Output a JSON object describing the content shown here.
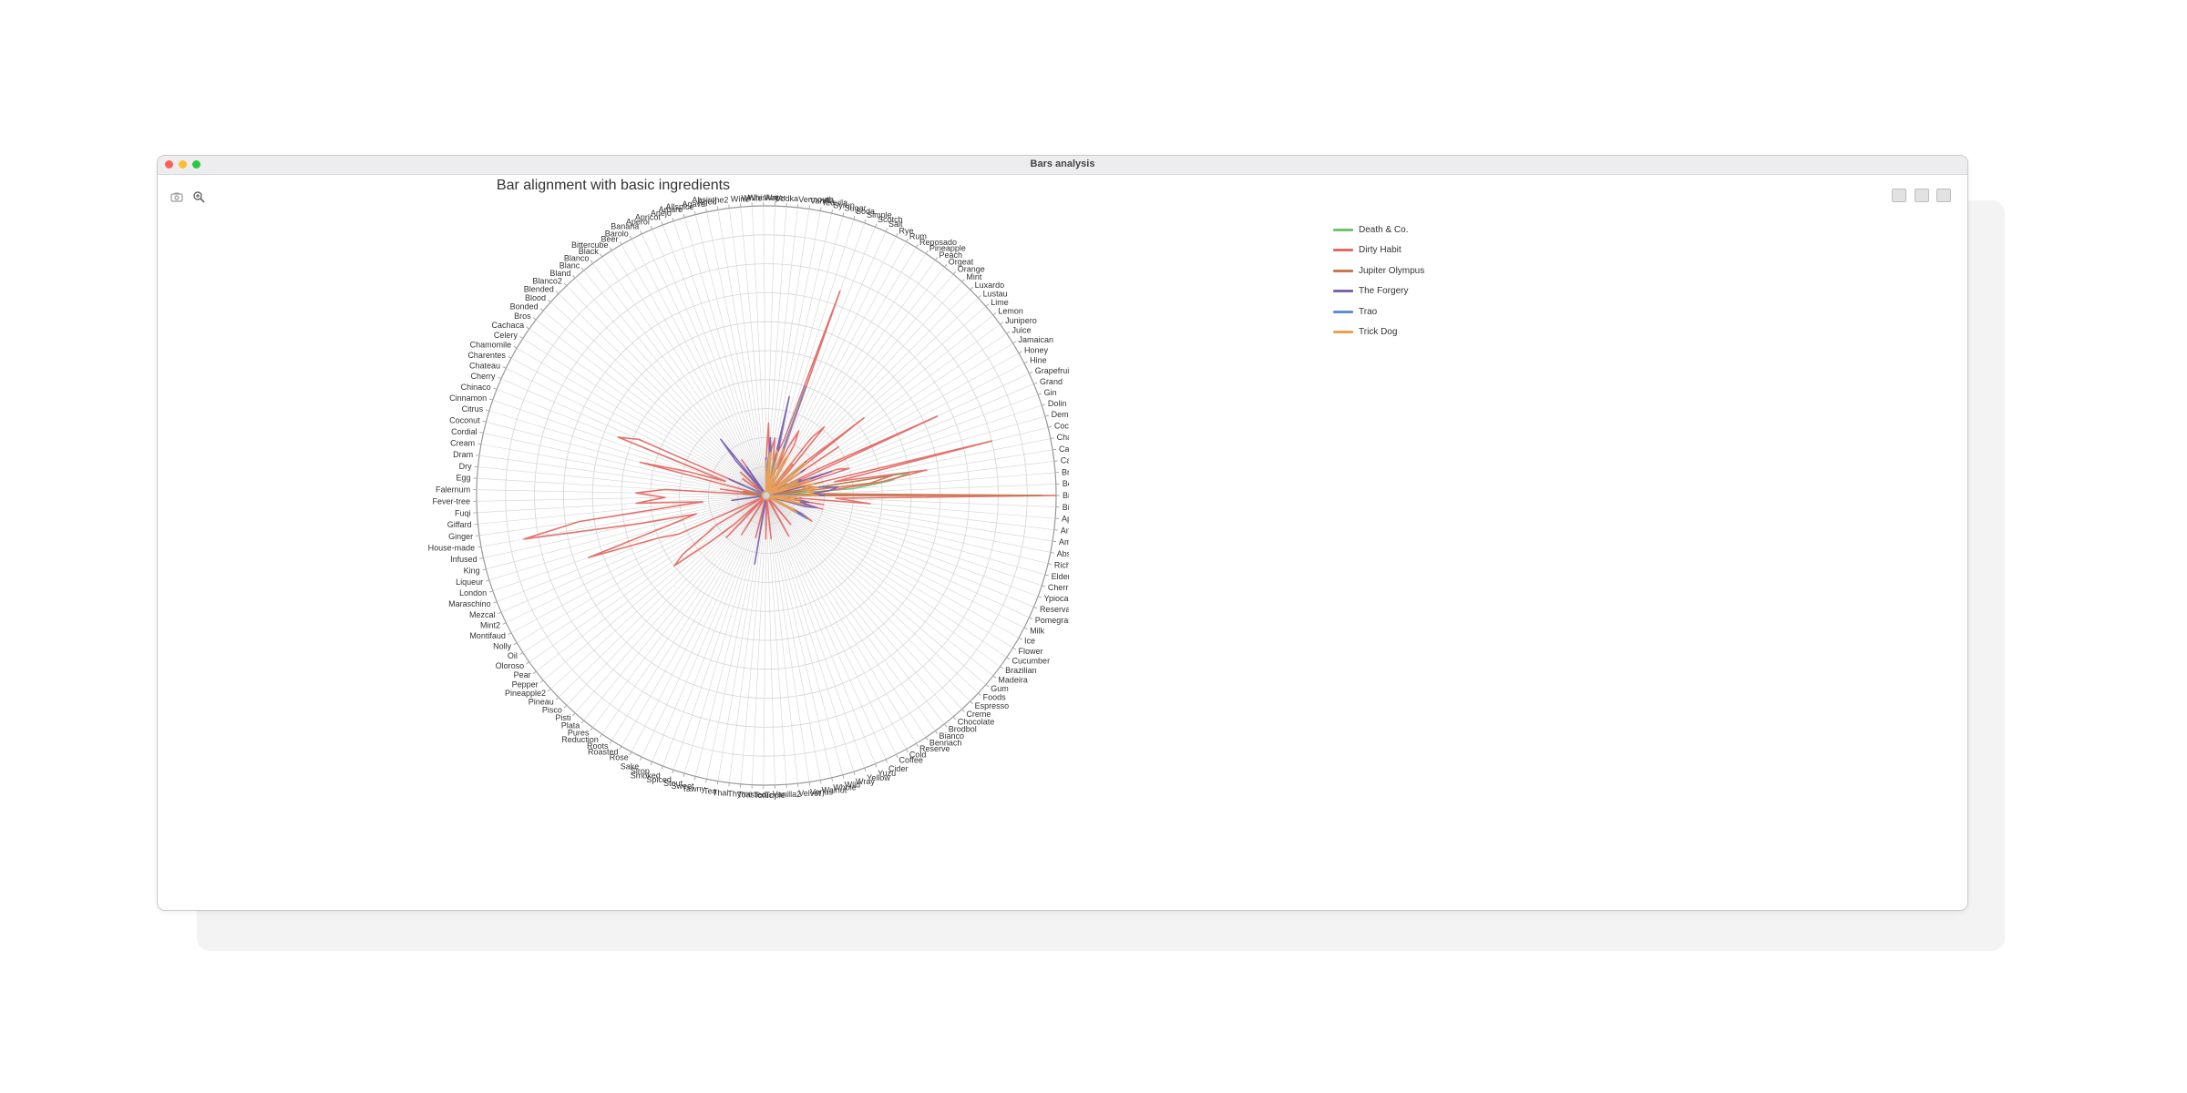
{
  "window": {
    "title": "Bars analysis"
  },
  "toolbar": {
    "left_icons": [
      "camera-icon",
      "zoom-icon"
    ],
    "right_icons": [
      "table-icon",
      "expand-icon",
      "menu-icon"
    ]
  },
  "colors": {
    "grid": "#d4d4d4",
    "axis": "#9a9a9a",
    "text": "#333333"
  },
  "chart_data": {
    "type": "radar",
    "title": "Bar alignment with basic ingredients",
    "legend_position": "right",
    "grid": true,
    "rmax": 10,
    "angle_start": "right",
    "direction": "counterclockwise",
    "categories": [
      "Bitters",
      "Bourbon",
      "Brandy",
      "Cacao",
      "Calvados",
      "Chartreuse",
      "Cocchi",
      "Demerara",
      "Dolin",
      "Gin",
      "Grand",
      "Grapefruit",
      "Hine",
      "Honey",
      "Jamaican",
      "Juice",
      "Junipero",
      "Lemon",
      "Lime",
      "Lustau",
      "Luxardo",
      "Mint",
      "Orange",
      "Orgeat",
      "Peach",
      "Pineapple",
      "Reposado",
      "Rum",
      "Rye",
      "Salt",
      "Scotch",
      "Simple",
      "Soda",
      "Sugar",
      "Syrup",
      "Tequila",
      "Vanilla",
      "Vermouth",
      "Vodka",
      "Water",
      "Whiskey",
      "White",
      "Wine",
      "Absinthe2",
      "Aged",
      "Agave",
      "Allspice",
      "Amaro",
      "Anejo",
      "Apricot",
      "Aperol",
      "Banana",
      "Barolo",
      "Beer",
      "Bittercube",
      "Black",
      "Blanco",
      "Blanc",
      "Bland",
      "Blanco2",
      "Blended",
      "Blood",
      "Bonded",
      "Bros",
      "Cachaca",
      "Celery",
      "Chamomile",
      "Charentes",
      "Chateau",
      "Cherry",
      "Chinaco",
      "Cinnamon",
      "Citrus",
      "Coconut",
      "Cordial",
      "Cream",
      "Dram",
      "Dry",
      "Egg",
      "Falernum",
      "Fever-tree",
      "Fuqi",
      "Giffard",
      "Ginger",
      "House-made",
      "Infused",
      "King",
      "Liqueur",
      "London",
      "Maraschino",
      "Mezcal",
      "Mint2",
      "Montifaud",
      "Nolly",
      "Oil",
      "Oloroso",
      "Pear",
      "Pepper",
      "Pineapple2",
      "Pineau",
      "Pisco",
      "Pisti",
      "Plata",
      "Pures",
      "Reduction",
      "Roots",
      "Roasted",
      "Rose",
      "Sake",
      "Sirop",
      "Smoked",
      "Spiced",
      "Stout",
      "Sweet",
      "Tawny",
      "Tea",
      "Thai",
      "Thyme",
      "Toasted",
      "Tonic",
      "Triple",
      "Vanilla2",
      "Velvet",
      "Verjus",
      "Walnut",
      "Whole",
      "Wild",
      "Wray",
      "Yellow",
      "Yuzu",
      "Cider",
      "Coffee",
      "Cold",
      "Reserve",
      "Benriach",
      "Bianco",
      "Brodbol",
      "Chocolate",
      "Creme",
      "Espresso",
      "Foods",
      "Gum",
      "Madeira",
      "Brazilian",
      "Cucumber",
      "Flower",
      "Ice",
      "Milk",
      "Pomegranate",
      "Reserva",
      "Ypioca",
      "Cherries",
      "Elderflower",
      "Rich",
      "Absinthe",
      "Amontillado",
      "Angostura",
      "Apple",
      "Bittermens"
    ],
    "series": [
      {
        "name": "Death & Co.",
        "color": "#6cc46c",
        "values": {
          "Calvados": 5.0,
          "Cacao": 4.3,
          "Bitters": 2.8,
          "Brandy": 3.0,
          "Cocchi": 2.0,
          "Gin": 1.6,
          "Grand": 1.2,
          "Lemon": 1.5,
          "Lime": 1.3,
          "Simple": 1.0,
          "Sugar": 0.9,
          "Rye": 1.2,
          "Rum": 1.0,
          "Vermouth": 1.5,
          "Honey": 0.8,
          "Ice": 0.7,
          "Cherries": 0.6
        }
      },
      {
        "name": "Dirty Habit",
        "color": "#e46a64",
        "values": {
          "Bitters": 10.0,
          "Bourbon": 1.5,
          "Brandy": 2.2,
          "Cacao": 4.0,
          "Calvados": 5.6,
          "Chartreuse": 2.4,
          "Cocchi": 8.0,
          "Dolin": 3.0,
          "Gin": 2.6,
          "Grapefruit": 6.5,
          "Hine": 2.0,
          "Juice": 3.0,
          "Lemon": 4.3,
          "Lime": 1.8,
          "Mint": 1.2,
          "Orange": 3.1,
          "Orgeat": 2.5,
          "Rum": 2.0,
          "Rye": 2.5,
          "Salt": 1.8,
          "Scotch": 1.0,
          "Simple": 7.5,
          "Soda": 2.0,
          "Sugar": 1.6,
          "Syrup": 1.4,
          "Tequila": 1.2,
          "Vanilla": 2.0,
          "Vermouth": 1.6,
          "Vodka": 1.4,
          "Water": 2.5,
          "Whiskey": 1.2,
          "Black": 1.5,
          "Blood": 1.2,
          "Cachaca": 1.0,
          "Cherry": 4.8,
          "Chinaco": 5.5,
          "Cinnamon": 1.5,
          "Citrus": 2.8,
          "Coconut": 4.5,
          "Dram": 1.6,
          "Egg": 3.5,
          "Falernum": 4.5,
          "Fever-tree": 3.5,
          "Fuqi": 4.5,
          "Giffard": 2.2,
          "Ginger": 6.5,
          "House-made": 8.5,
          "Infused": 4.5,
          "King": 2.5,
          "Liqueur": 3.5,
          "London": 6.5,
          "Maraschino": 4.0,
          "Mezcal": 3.3,
          "Nolly": 2.0,
          "Oil": 2.5,
          "Oloroso": 3.5,
          "Pear": 4.0,
          "Pepper": 2.5,
          "Pineapple2": 1.5,
          "Pisco": 2.0,
          "Roots": 1.6,
          "Sweet": 1.5,
          "Tonic": 1.5,
          "Velvet": 1.5,
          "Cold": 1.6,
          "Chocolate": 1.3,
          "Ice": 1.8,
          "Milk": 1.4,
          "Rich": 2.0,
          "Apple": 3.6,
          "Amontillado": 2.0,
          "Bittermens": 2.4
        }
      },
      {
        "name": "Jupiter Olympus",
        "color": "#c7784f",
        "values": {
          "Bitters": 9.5,
          "Bourbon": 1.0,
          "Cacao": 3.6,
          "Calvados": 4.4,
          "Cocchi": 2.0,
          "Gin": 1.5,
          "Juice": 1.5,
          "Lemon": 1.2,
          "Lime": 1.0,
          "Orange": 1.4,
          "Rum": 1.5,
          "Rye": 1.0,
          "Simple": 1.2,
          "Sugar": 1.0,
          "Vermouth": 1.0,
          "Apple": 1.2,
          "Ice": 0.9,
          "Cream": 0.8,
          "Egg": 0.8
        }
      },
      {
        "name": "The Forgery",
        "color": "#7a62b0",
        "values": {
          "Bitters": 2.0,
          "Bourbon": 1.6,
          "Brandy": 2.2,
          "Cacao": 2.5,
          "Calvados": 1.8,
          "Chartreuse": 1.5,
          "Cocchi": 1.4,
          "Gin": 2.4,
          "Grand": 1.2,
          "Grapefruit": 1.3,
          "Juice": 1.6,
          "Lemon": 1.2,
          "Lime": 1.8,
          "Orange": 1.1,
          "Rum": 1.5,
          "Rye": 1.3,
          "Simple": 1.8,
          "Sugar": 1.4,
          "Syrup": 3.5,
          "Vermouth": 1.5,
          "Vodka": 2.0,
          "Whiskey": 1.3,
          "Black": 1.2,
          "Blanc": 2.5,
          "Bland": 1.6,
          "Cherry": 1.4,
          "Ginger": 1.2,
          "Tea": 2.4,
          "Ice": 1.6,
          "Rich": 1.8,
          "Elderflower": 1.4,
          "Milk": 1.3,
          "Absinthe": 1.2,
          "Amontillado": 1.5,
          "Angostura": 1.0,
          "Apple": 1.2
        }
      },
      {
        "name": "Trao",
        "color": "#5e8fd1",
        "values": {
          "Bitters": 1.2,
          "Bourbon": 0.9,
          "Gin": 1.0,
          "Lemon": 1.1,
          "Lime": 1.2,
          "Rum": 1.0,
          "Rye": 1.0,
          "Simple": 4.0,
          "Sugar": 1.2,
          "Syrup": 1.2,
          "Vermouth": 1.0,
          "Vodka": 1.5,
          "Water": 1.0,
          "Cherry": 0.8,
          "Ice": 1.6,
          "Angostura": 0.8
        }
      },
      {
        "name": "Trick Dog",
        "color": "#f0a050",
        "values": {
          "Bitters": 1.8,
          "Bourbon": 1.5,
          "Brandy": 1.6,
          "Cacao": 1.4,
          "Calvados": 1.8,
          "Chartreuse": 1.3,
          "Cocchi": 1.7,
          "Demerara": 1.2,
          "Gin": 1.6,
          "Grapefruit": 1.2,
          "Juice": 1.4,
          "Lemon": 1.8,
          "Lime": 1.7,
          "Orange": 1.3,
          "Rum": 1.6,
          "Rye": 1.4,
          "Simple": 1.7,
          "Sugar": 1.5,
          "Syrup": 1.6,
          "Tequila": 1.3,
          "Vermouth": 1.5,
          "Vodka": 1.4,
          "Whiskey": 1.2,
          "Ice": 1.2,
          "Milk": 1.0,
          "Rich": 1.3,
          "Apple": 1.1,
          "Amontillado": 1.0,
          "Angostura": 1.2
        }
      }
    ]
  }
}
